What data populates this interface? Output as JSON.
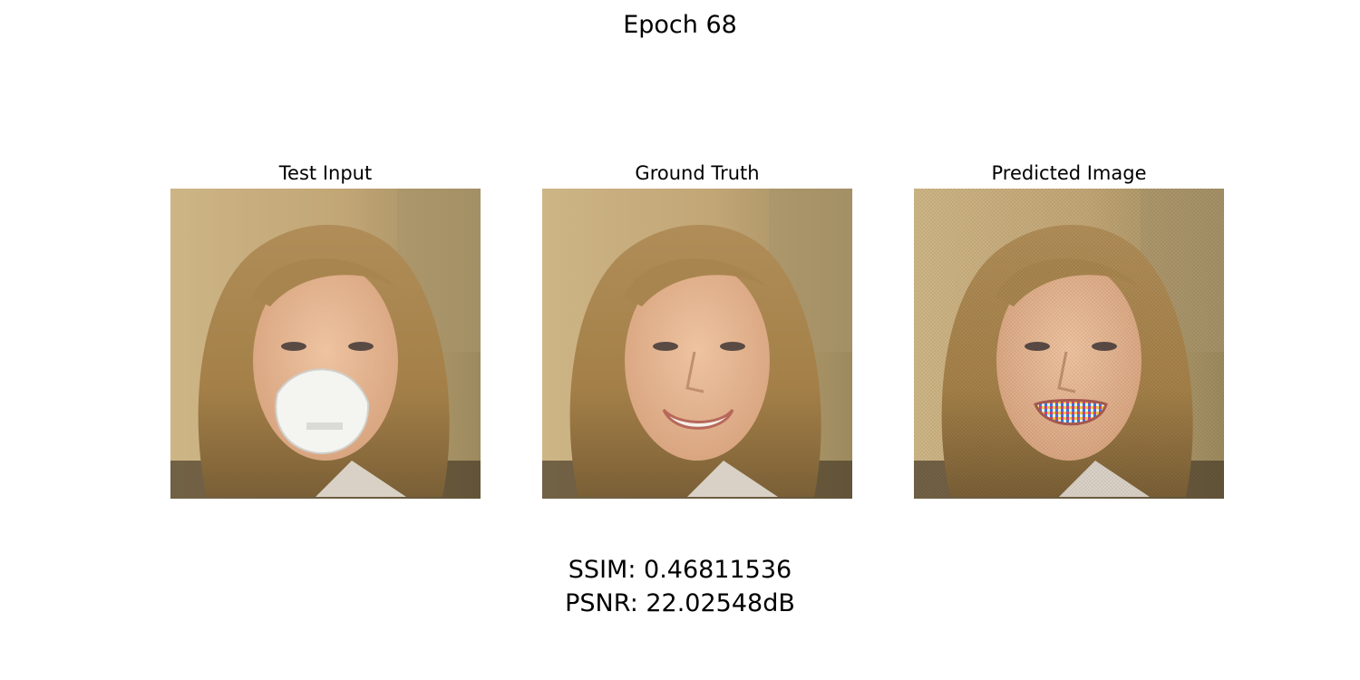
{
  "figure": {
    "title": "Epoch 68"
  },
  "panels": [
    {
      "title": "Test Input",
      "image": "masked-face-photo"
    },
    {
      "title": "Ground Truth",
      "image": "smiling-face-photo"
    },
    {
      "title": "Predicted Image",
      "image": "reconstructed-face-photo"
    }
  ],
  "metrics": {
    "ssim": "SSIM: 0.46811536",
    "psnr": "PSNR: 22.02548dB"
  },
  "colors": {
    "background": "#ffffff",
    "hair": "#a98650",
    "skin": "#e4b48e",
    "wall": "#c9ae7c",
    "mask": "#f4f4f0"
  }
}
